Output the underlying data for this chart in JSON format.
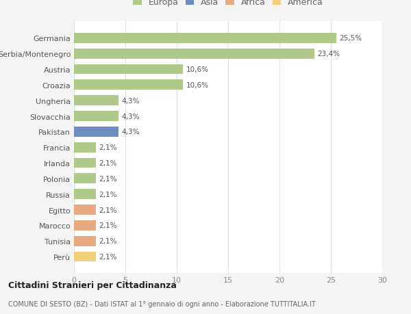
{
  "categories": [
    "Germania",
    "Serbia/Montenegro",
    "Austria",
    "Croazia",
    "Ungheria",
    "Slovacchia",
    "Pakistan",
    "Francia",
    "Irlanda",
    "Polonia",
    "Russia",
    "Egitto",
    "Marocco",
    "Tunisia",
    "Perù"
  ],
  "values": [
    25.5,
    23.4,
    10.6,
    10.6,
    4.3,
    4.3,
    4.3,
    2.1,
    2.1,
    2.1,
    2.1,
    2.1,
    2.1,
    2.1,
    2.1
  ],
  "labels": [
    "25,5%",
    "23,4%",
    "10,6%",
    "10,6%",
    "4,3%",
    "4,3%",
    "4,3%",
    "2,1%",
    "2,1%",
    "2,1%",
    "2,1%",
    "2,1%",
    "2,1%",
    "2,1%",
    "2,1%"
  ],
  "colors": [
    "#aec98a",
    "#aec98a",
    "#aec98a",
    "#aec98a",
    "#aec98a",
    "#aec98a",
    "#6b8dbf",
    "#aec98a",
    "#aec98a",
    "#aec98a",
    "#aec98a",
    "#e8aa80",
    "#e8aa80",
    "#e8aa80",
    "#f0cf78"
  ],
  "legend_labels": [
    "Europa",
    "Asia",
    "Africa",
    "America"
  ],
  "legend_colors": [
    "#aec98a",
    "#6b8dbf",
    "#e8aa80",
    "#f0cf78"
  ],
  "title": "Cittadini Stranieri per Cittadinanza",
  "subtitle": "COMUNE DI SESTO (BZ) - Dati ISTAT al 1° gennaio di ogni anno - Elaborazione TUTTITALIA.IT",
  "xlim": [
    0,
    30
  ],
  "xticks": [
    0,
    5,
    10,
    15,
    20,
    25,
    30
  ],
  "bg_color": "#f4f4f4",
  "plot_bg_color": "#ffffff",
  "grid_color": "#e0e0e0",
  "bar_height": 0.65
}
